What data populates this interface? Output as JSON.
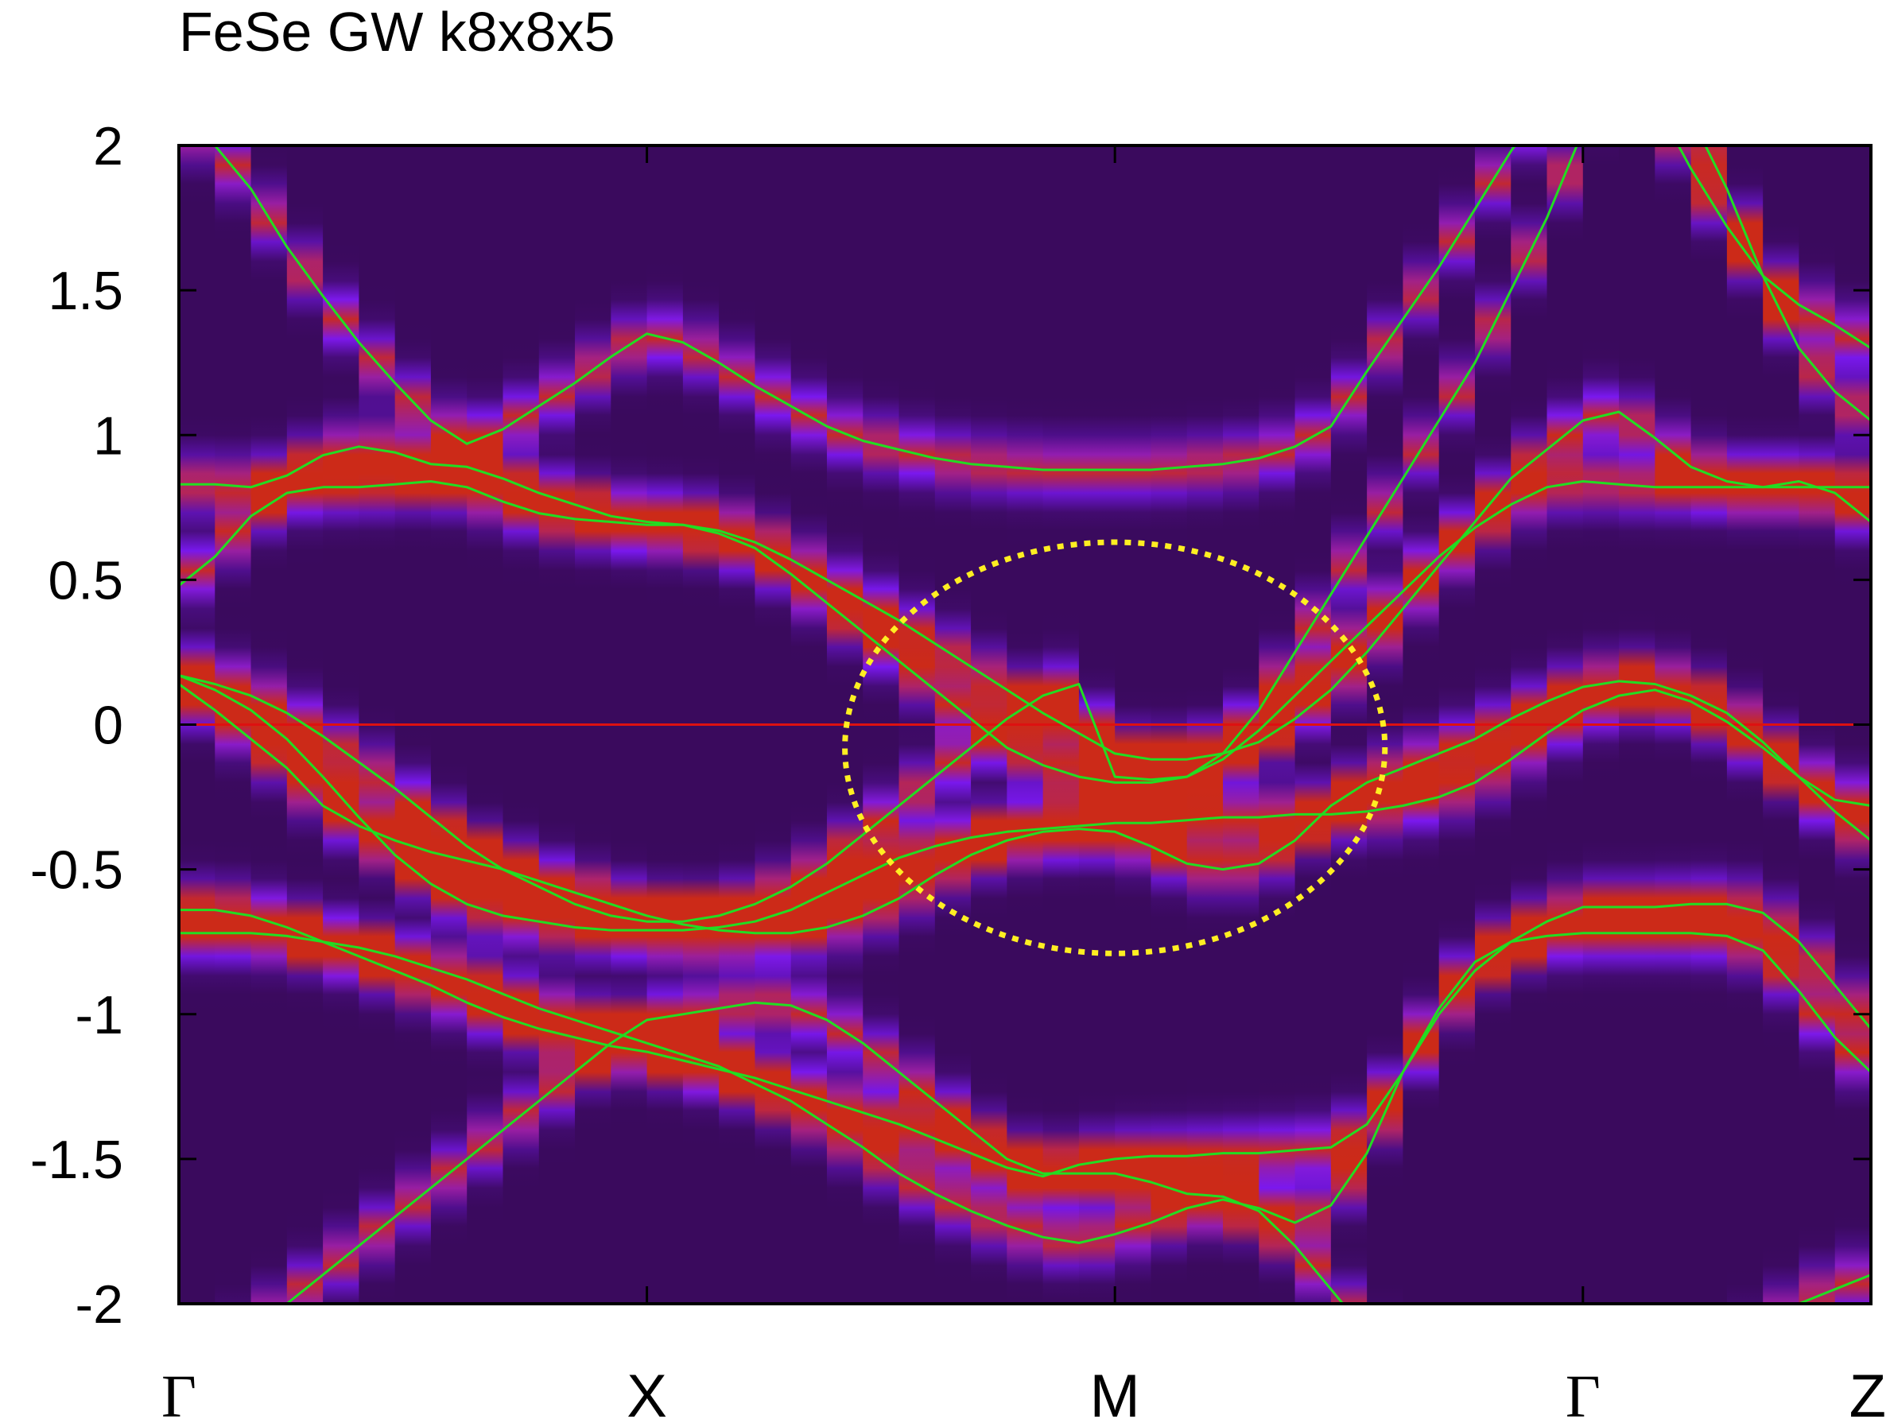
{
  "chart_data": {
    "type": "heatmap",
    "title": "FeSe GW k8x8x5",
    "xlabel": "",
    "ylabel": "",
    "ylim": [
      -2,
      2
    ],
    "yticks": [
      "2",
      "1.5",
      "1",
      "0.5",
      "0",
      "-0.5",
      "-1",
      "-1.5",
      "-2"
    ],
    "xticks": [
      {
        "label": "Γ",
        "k": 0
      },
      {
        "label": "X",
        "k": 13
      },
      {
        "label": "M",
        "k": 26
      },
      {
        "label": "Γ",
        "k": 39
      },
      {
        "label": "Z",
        "k": 47
      }
    ],
    "k_points": 47,
    "fermi_level": 0,
    "colors": {
      "frame": "#000000",
      "bands": "#22dd22",
      "fermi": "#dd1111",
      "ellipse": "#ffee22",
      "background": "#2a0638",
      "mid": "#7a18f0",
      "peak": "#cc2a18"
    },
    "highlight_ellipse": {
      "k_center": 26,
      "e_center": -0.08,
      "k_radius": 7.5,
      "e_radius": 0.71
    },
    "series": [
      {
        "values": [
          0.17,
          0.12,
          0.05,
          -0.05,
          -0.18,
          -0.32,
          -0.45,
          -0.55,
          -0.62,
          -0.66,
          -0.68,
          -0.7,
          -0.71,
          -0.71,
          -0.71,
          -0.7,
          -0.68,
          -0.64,
          -0.58,
          -0.52,
          -0.46,
          -0.42,
          -0.39,
          -0.37,
          -0.36,
          -0.35,
          -0.34,
          -0.34,
          -0.33,
          -0.32,
          -0.32,
          -0.31,
          -0.31,
          -0.3,
          -0.28,
          -0.25,
          -0.2,
          -0.12,
          -0.03,
          0.05,
          0.1,
          0.12,
          0.08,
          0.01,
          -0.08,
          -0.18,
          -0.3,
          -0.4
        ]
      },
      {
        "values": [
          0.17,
          0.14,
          0.1,
          0.04,
          -0.04,
          -0.13,
          -0.22,
          -0.32,
          -0.42,
          -0.5,
          -0.56,
          -0.62,
          -0.66,
          -0.68,
          -0.68,
          -0.66,
          -0.62,
          -0.56,
          -0.48,
          -0.38,
          -0.28,
          -0.18,
          -0.08,
          0.02,
          0.1,
          0.14,
          -0.18,
          -0.19,
          -0.18,
          -0.12,
          -0.02,
          0.1,
          0.22,
          0.34,
          0.46,
          0.58,
          0.68,
          0.76,
          0.82,
          0.84,
          0.83,
          0.82,
          0.82,
          0.82,
          0.82,
          0.82,
          0.82,
          0.82
        ]
      },
      {
        "values": [
          0.14,
          0.05,
          -0.05,
          -0.15,
          -0.28,
          -0.35,
          -0.4,
          -0.44,
          -0.47,
          -0.5,
          -0.54,
          -0.58,
          -0.62,
          -0.66,
          -0.69,
          -0.71,
          -0.72,
          -0.72,
          -0.7,
          -0.66,
          -0.6,
          -0.52,
          -0.45,
          -0.4,
          -0.37,
          -0.36,
          -0.37,
          -0.42,
          -0.48,
          -0.5,
          -0.48,
          -0.4,
          -0.28,
          -0.2,
          -0.15,
          -0.1,
          -0.05,
          0.02,
          0.08,
          0.13,
          0.15,
          0.14,
          0.1,
          0.04,
          -0.06,
          -0.18,
          -0.26,
          -0.28
        ]
      },
      {
        "values": [
          -0.64,
          -0.64,
          -0.66,
          -0.7,
          -0.75,
          -0.8,
          -0.85,
          -0.9,
          -0.96,
          -1.01,
          -1.05,
          -1.08,
          -1.11,
          -1.13,
          -1.16,
          -1.19,
          -1.22,
          -1.26,
          -1.3,
          -1.34,
          -1.38,
          -1.43,
          -1.48,
          -1.53,
          -1.56,
          -1.52,
          -1.5,
          -1.49,
          -1.49,
          -1.48,
          -1.48,
          -1.47,
          -1.46,
          -1.38,
          -1.2,
          -1.0,
          -0.85,
          -0.75,
          -0.68,
          -0.63,
          -0.63,
          -0.63,
          -0.62,
          -0.62,
          -0.65,
          -0.75,
          -0.9,
          -1.05
        ]
      },
      {
        "values": [
          -0.72,
          -0.72,
          -0.72,
          -0.73,
          -0.75,
          -0.77,
          -0.8,
          -0.84,
          -0.88,
          -0.93,
          -0.98,
          -1.02,
          -1.06,
          -1.1,
          -1.14,
          -1.18,
          -1.24,
          -1.3,
          -1.38,
          -1.46,
          -1.55,
          -1.62,
          -1.68,
          -1.73,
          -1.77,
          -1.79,
          -1.76,
          -1.72,
          -1.67,
          -1.64,
          -1.67,
          -1.72,
          -1.66,
          -1.48,
          -1.2,
          -0.98,
          -0.82,
          -0.75,
          -0.73,
          -0.72,
          -0.72,
          -0.72,
          -0.72,
          -0.73,
          -0.78,
          -0.92,
          -1.08,
          -1.2
        ]
      },
      {
        "values": [
          0.48,
          0.58,
          0.72,
          0.8,
          0.82,
          0.82,
          0.83,
          0.84,
          0.82,
          0.77,
          0.73,
          0.71,
          0.7,
          0.69,
          0.69,
          0.66,
          0.61,
          0.52,
          0.42,
          0.32,
          0.22,
          0.12,
          0.02,
          -0.08,
          -0.14,
          -0.18,
          -0.2,
          -0.2,
          -0.18,
          -0.1,
          0.05,
          0.25,
          0.45,
          0.65,
          0.85,
          1.05,
          1.25,
          1.5,
          1.75,
          2.05,
          2.3,
          2.3,
          2.1,
          1.85,
          1.55,
          1.3,
          1.15,
          1.05
        ]
      },
      {
        "values": [
          2.1,
          2.0,
          1.85,
          1.65,
          1.48,
          1.32,
          1.18,
          1.05,
          0.97,
          1.02,
          1.1,
          1.18,
          1.27,
          1.35,
          1.32,
          1.25,
          1.17,
          1.1,
          1.03,
          0.98,
          0.95,
          0.92,
          0.9,
          0.89,
          0.88,
          0.88,
          0.88,
          0.88,
          0.89,
          0.9,
          0.92,
          0.96,
          1.03,
          1.22,
          1.4,
          1.58,
          1.78,
          1.98,
          2.15,
          2.3,
          2.3,
          2.15,
          1.92,
          1.72,
          1.55,
          1.45,
          1.38,
          1.3
        ]
      },
      {
        "values": [
          0.83,
          0.83,
          0.82,
          0.86,
          0.93,
          0.96,
          0.94,
          0.9,
          0.89,
          0.85,
          0.8,
          0.76,
          0.72,
          0.7,
          0.69,
          0.67,
          0.63,
          0.57,
          0.5,
          0.43,
          0.36,
          0.28,
          0.2,
          0.12,
          0.04,
          -0.03,
          -0.1,
          -0.12,
          -0.12,
          -0.1,
          -0.06,
          0.02,
          0.12,
          0.25,
          0.4,
          0.55,
          0.7,
          0.85,
          0.95,
          1.05,
          1.08,
          0.99,
          0.89,
          0.84,
          0.82,
          0.84,
          0.8,
          0.7
        ]
      },
      {
        "values": [
          -2.3,
          -2.2,
          -2.1,
          -2.0,
          -1.9,
          -1.8,
          -1.7,
          -1.6,
          -1.5,
          -1.4,
          -1.3,
          -1.2,
          -1.1,
          -1.02,
          -1.0,
          -0.98,
          -0.96,
          -0.97,
          -1.02,
          -1.1,
          -1.2,
          -1.3,
          -1.4,
          -1.5,
          -1.55,
          -1.55,
          -1.55,
          -1.58,
          -1.62,
          -1.63,
          -1.68,
          -1.8,
          -1.95,
          -2.1,
          -2.25,
          -2.4,
          -2.4,
          -2.4,
          -2.4,
          -2.4,
          -2.4,
          -2.4,
          -2.3,
          -2.2,
          -2.1,
          -2.0,
          -1.95,
          -1.9
        ]
      }
    ]
  }
}
